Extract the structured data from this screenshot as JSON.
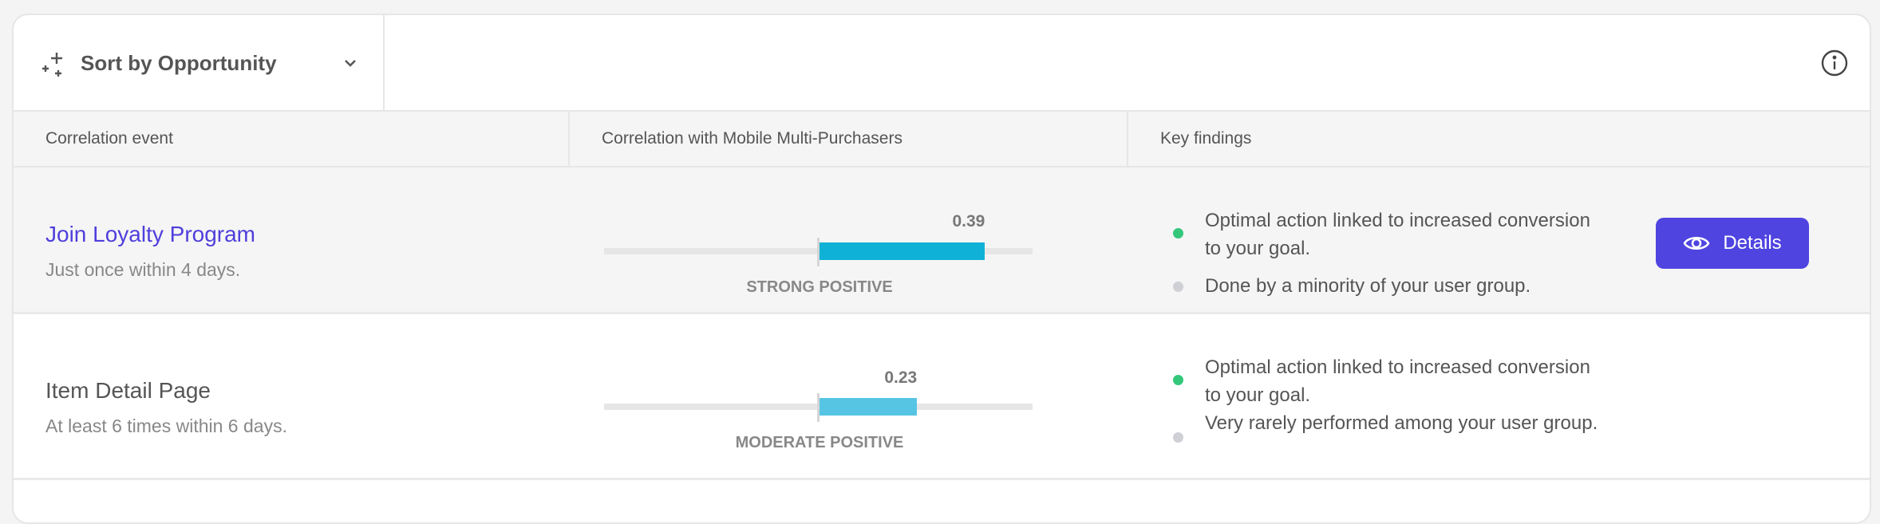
{
  "toolbar": {
    "sort_label": "Sort by Opportunity",
    "sort_icon": "sparkle-icon",
    "info_icon": "info-icon"
  },
  "columns": [
    "Correlation event",
    "Correlation with Mobile Multi-Purchasers",
    "Key findings"
  ],
  "colors": {
    "accent": "#4f44e0",
    "link": "#4f3fdc",
    "positive": "#34c77b",
    "neutral": "#cfcfd6"
  },
  "rows": [
    {
      "event": "Join Loyalty Program",
      "condition": "Just once within 4 days.",
      "correlation": 0.39,
      "correlation_label": "0.39",
      "strength": "STRONG POSITIVE",
      "bar_color": "#10b1d6",
      "findings": [
        {
          "text": "Optimal action linked to increased conversion to your goal.",
          "status": "positive"
        },
        {
          "text": "Done by a minority of your user group.",
          "status": "neutral"
        }
      ],
      "button": "Details"
    },
    {
      "event": "Item Detail Page",
      "condition": "At least 6 times within 6 days.",
      "correlation": 0.23,
      "correlation_label": "0.23",
      "strength": "MODERATE POSITIVE",
      "bar_color": "#56c5e3",
      "findings": [
        {
          "text": "Optimal action linked to increased conversion to your goal.",
          "status": "positive"
        },
        {
          "text": "Very rarely performed among your user group.",
          "status": "neutral"
        }
      ]
    }
  ]
}
